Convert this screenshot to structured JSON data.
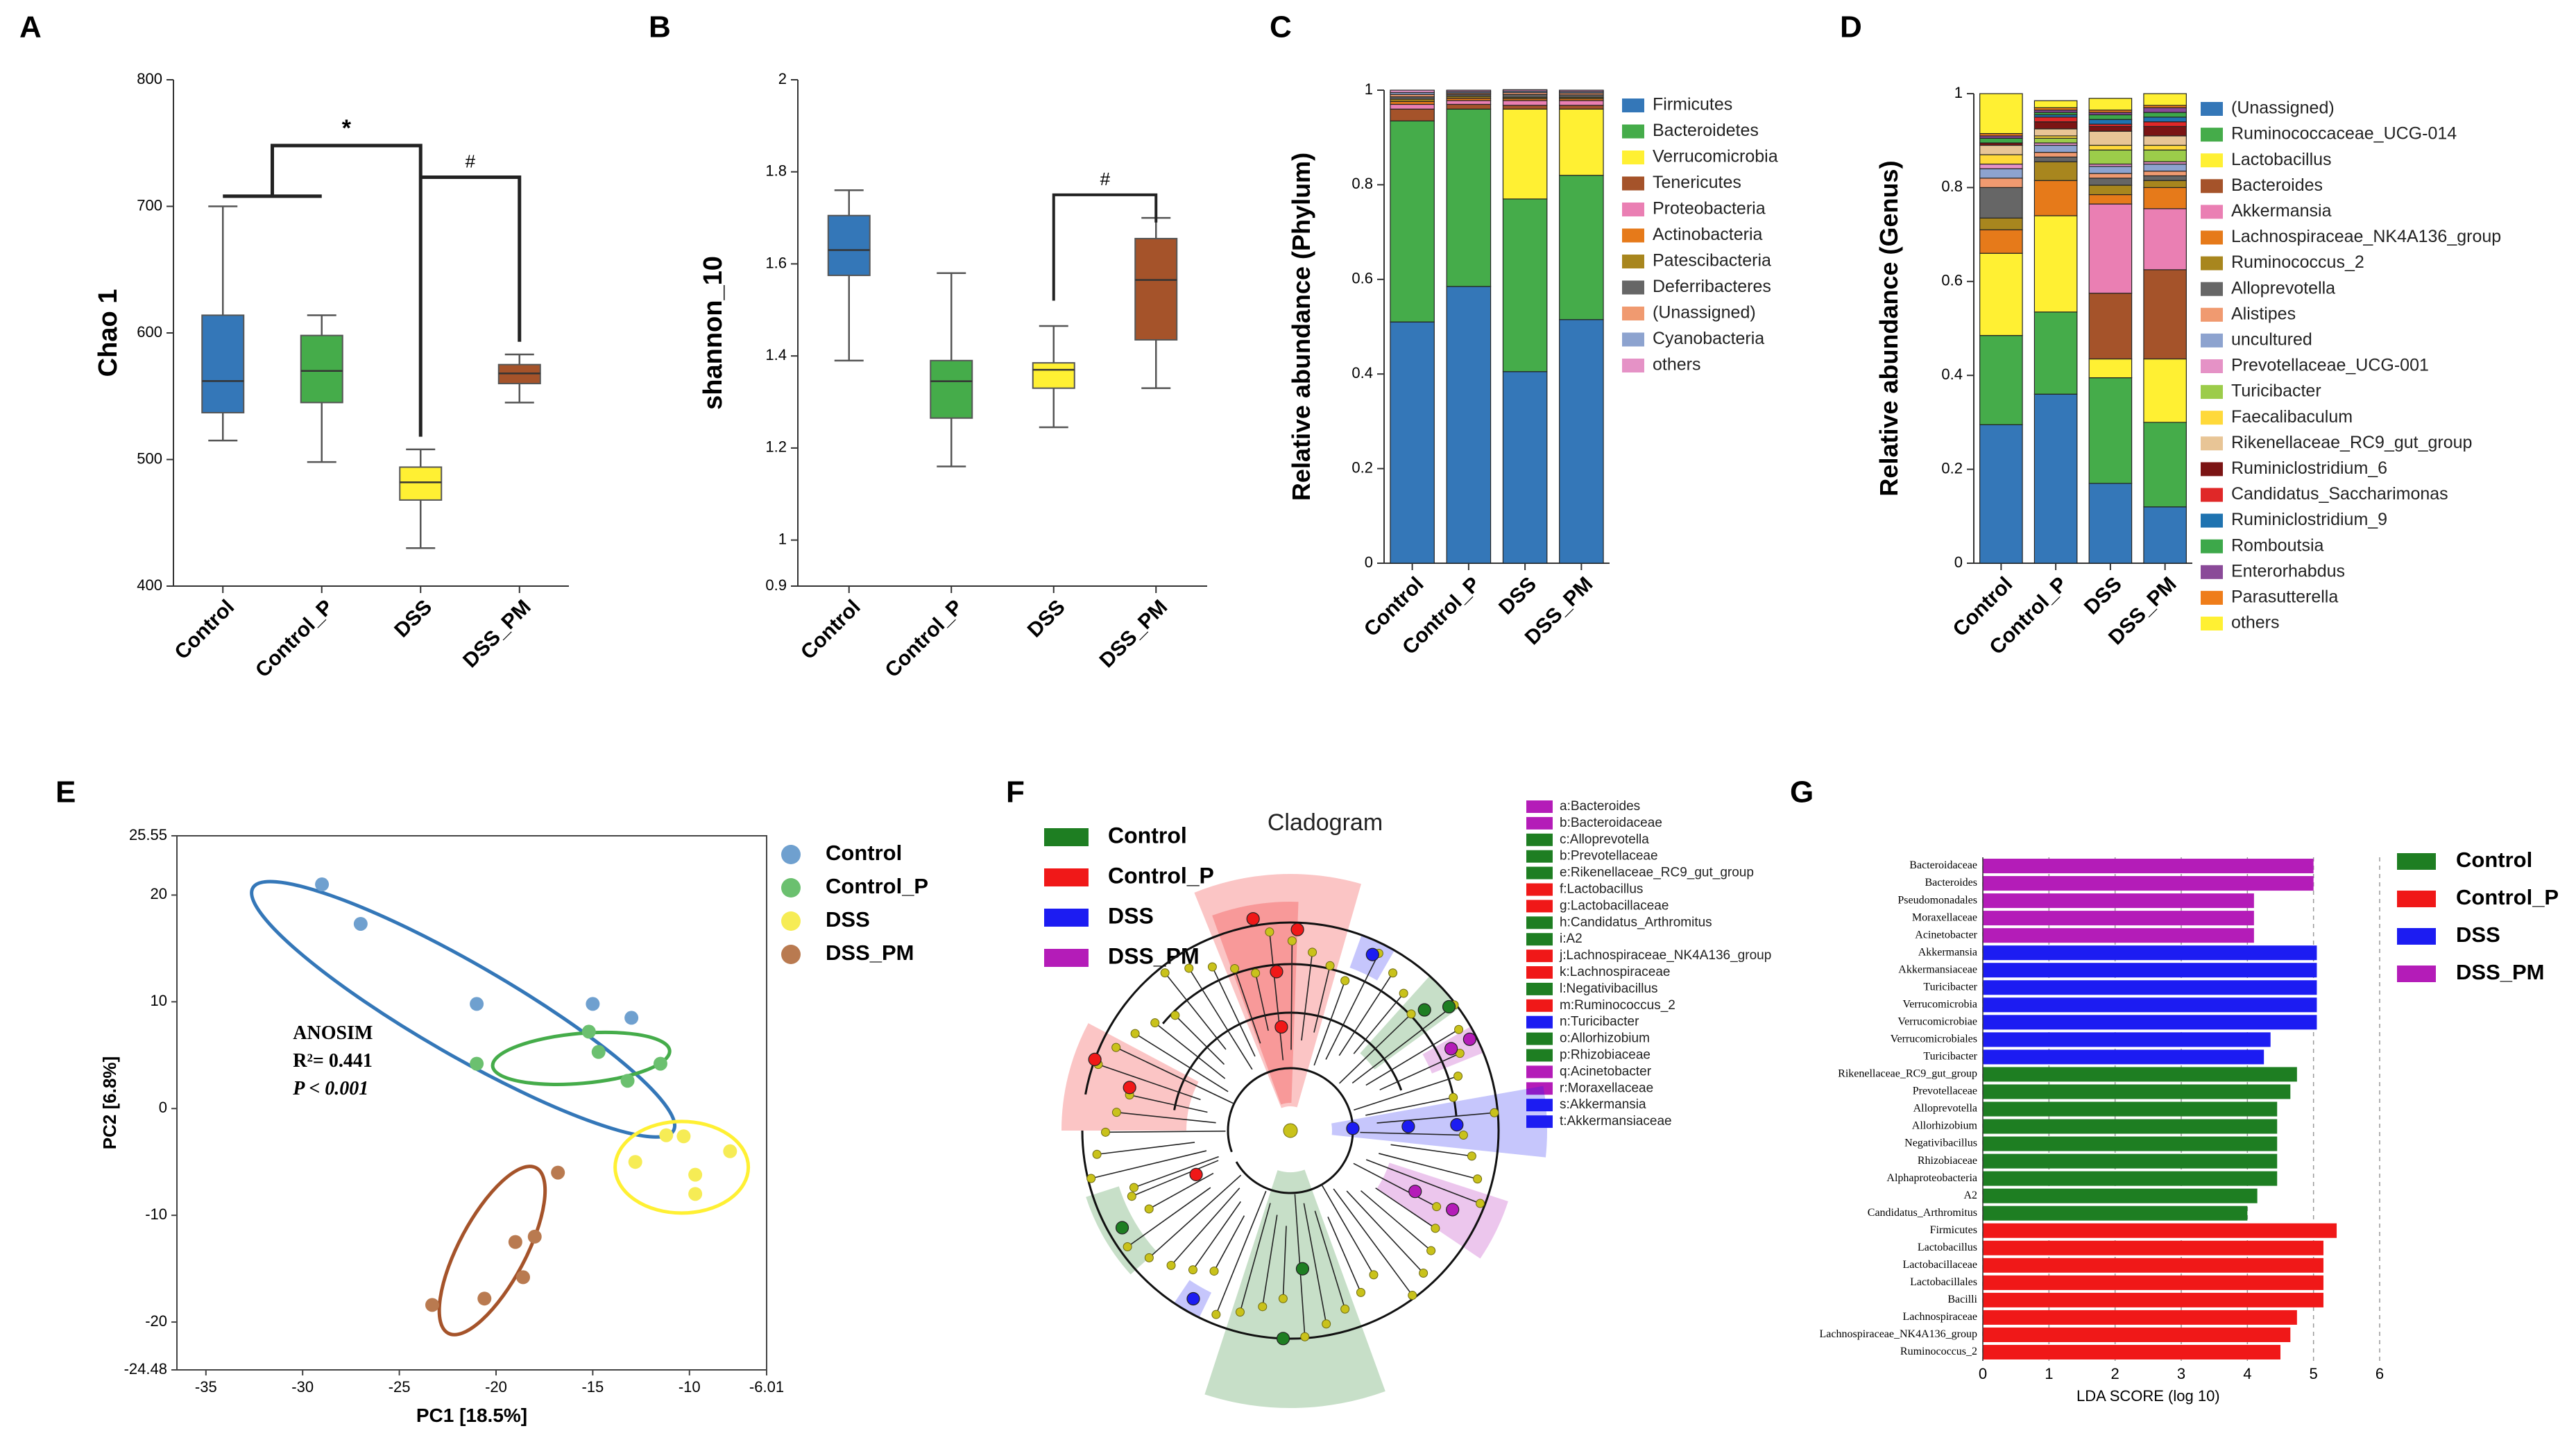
{
  "colors": {
    "control": "#3477b8",
    "control_p": "#45ac4a",
    "dss": "#fff033",
    "dss_pm": "#a5532a",
    "lefse_control": "#1e7e22",
    "lefse_control_p": "#f01818",
    "lefse_dss": "#1c1cf2",
    "lefse_dss_pm": "#b41cb8"
  },
  "panels": {
    "A": {
      "letter": "A"
    },
    "B": {
      "letter": "B"
    },
    "C": {
      "letter": "C"
    },
    "D": {
      "letter": "D"
    },
    "E": {
      "letter": "E"
    },
    "F": {
      "letter": "F"
    },
    "G": {
      "letter": "G"
    }
  },
  "chart_data": [
    {
      "id": "A",
      "type": "box",
      "ylabel": "Chao 1",
      "ylim": [
        400,
        800
      ],
      "yticks": [
        "400",
        "500",
        "600",
        "700",
        "800"
      ],
      "categories": [
        "Control",
        "Control_P",
        "DSS",
        "DSS_PM"
      ],
      "boxes": [
        {
          "min": 515,
          "q1": 537,
          "median": 562,
          "q3": 614,
          "max": 700,
          "color": "#3477b8"
        },
        {
          "min": 498,
          "q1": 545,
          "median": 570,
          "q3": 598,
          "max": 614,
          "color": "#45ac4a"
        },
        {
          "min": 430,
          "q1": 468,
          "median": 482,
          "q3": 494,
          "max": 508,
          "color": "#fff033"
        },
        {
          "min": 545,
          "q1": 560,
          "median": 568,
          "q3": 575,
          "max": 583,
          "color": "#a5532a"
        }
      ],
      "annotations": [
        "*",
        "#"
      ]
    },
    {
      "id": "B",
      "type": "box",
      "ylabel": "shannon_10",
      "ylim": [
        0.9,
        2
      ],
      "yticks": [
        "0.9",
        "1",
        "1.2",
        "1.4",
        "1.6",
        "1.8",
        "2"
      ],
      "categories": [
        "Control",
        "Control_P",
        "DSS",
        "DSS_PM"
      ],
      "boxes": [
        {
          "min": 1.39,
          "q1": 1.575,
          "median": 1.63,
          "q3": 1.705,
          "max": 1.76,
          "color": "#3477b8"
        },
        {
          "min": 1.16,
          "q1": 1.265,
          "median": 1.345,
          "q3": 1.39,
          "max": 1.58,
          "color": "#45ac4a"
        },
        {
          "min": 1.245,
          "q1": 1.33,
          "median": 1.37,
          "q3": 1.385,
          "max": 1.465,
          "color": "#fff033"
        },
        {
          "min": 1.33,
          "q1": 1.435,
          "median": 1.565,
          "q3": 1.655,
          "max": 1.7,
          "color": "#a5532a"
        }
      ],
      "annotations": [
        "#"
      ]
    },
    {
      "id": "C",
      "type": "stacked_bar",
      "ylabel": "Relative abundance (Phylum)",
      "ylim": [
        0,
        1
      ],
      "yticks": [
        "0",
        "0.2",
        "0.4",
        "0.6",
        "0.8",
        "1"
      ],
      "categories": [
        "Control",
        "Control_P",
        "DSS",
        "DSS_PM"
      ],
      "series": [
        {
          "name": "Firmicutes",
          "color": "#3477b8",
          "values": [
            0.51,
            0.585,
            0.405,
            0.515
          ]
        },
        {
          "name": "Bacteroidetes",
          "color": "#45ac4a",
          "values": [
            0.425,
            0.375,
            0.365,
            0.305
          ]
        },
        {
          "name": "Verrucomicrobia",
          "color": "#fff033",
          "values": [
            0.0,
            0.0,
            0.19,
            0.14
          ]
        },
        {
          "name": "Tenericutes",
          "color": "#a5532a",
          "values": [
            0.025,
            0.01,
            0.008,
            0.008
          ]
        },
        {
          "name": "Proteobacteria",
          "color": "#ea7fb3",
          "values": [
            0.01,
            0.008,
            0.01,
            0.01
          ]
        },
        {
          "name": "Actinobacteria",
          "color": "#e67a1a",
          "values": [
            0.006,
            0.005,
            0.004,
            0.004
          ]
        },
        {
          "name": "Patescibacteria",
          "color": "#a8861e",
          "values": [
            0.005,
            0.004,
            0.003,
            0.003
          ]
        },
        {
          "name": "Deferribacteres",
          "color": "#666666",
          "values": [
            0.005,
            0.004,
            0.006,
            0.005
          ]
        },
        {
          "name": "(Unassigned)",
          "color": "#f09a70",
          "values": [
            0.005,
            0.003,
            0.004,
            0.004
          ]
        },
        {
          "name": "Cyanobacteria",
          "color": "#8da3cf",
          "values": [
            0.004,
            0.003,
            0.003,
            0.003
          ]
        },
        {
          "name": "others",
          "color": "#e592c6",
          "values": [
            0.005,
            0.003,
            0.003,
            0.003
          ]
        }
      ]
    },
    {
      "id": "D",
      "type": "stacked_bar",
      "ylabel": "Relative abundance (Genus)",
      "ylim": [
        0,
        1
      ],
      "yticks": [
        "0",
        "0.2",
        "0.4",
        "0.6",
        "0.8",
        "1"
      ],
      "categories": [
        "Control",
        "Control_P",
        "DSS",
        "DSS_PM"
      ],
      "series": [
        {
          "name": "(Unassigned)",
          "color": "#3477b8",
          "values": [
            0.295,
            0.36,
            0.17,
            0.12
          ]
        },
        {
          "name": "Ruminococcaceae_UCG-014",
          "color": "#45ac4a",
          "values": [
            0.19,
            0.175,
            0.225,
            0.18
          ]
        },
        {
          "name": "Lactobacillus",
          "color": "#fff033",
          "values": [
            0.175,
            0.205,
            0.04,
            0.135
          ]
        },
        {
          "name": "Bacteroides",
          "color": "#a5532a",
          "values": [
            0.0,
            0.0,
            0.14,
            0.19
          ]
        },
        {
          "name": "Akkermansia",
          "color": "#ea7fb3",
          "values": [
            0.0,
            0.0,
            0.19,
            0.13
          ]
        },
        {
          "name": "Lachnospiraceae_NK4A136_group",
          "color": "#e67a1a",
          "values": [
            0.05,
            0.075,
            0.02,
            0.045
          ]
        },
        {
          "name": "Ruminococcus_2",
          "color": "#a8861e",
          "values": [
            0.025,
            0.04,
            0.02,
            0.015
          ]
        },
        {
          "name": "Alloprevotella",
          "color": "#666666",
          "values": [
            0.065,
            0.01,
            0.015,
            0.01
          ]
        },
        {
          "name": "Alistipes",
          "color": "#f09a70",
          "values": [
            0.02,
            0.01,
            0.01,
            0.01
          ]
        },
        {
          "name": "uncultured",
          "color": "#8da3cf",
          "values": [
            0.02,
            0.015,
            0.015,
            0.015
          ]
        },
        {
          "name": "Prevotellaceae_UCG-001",
          "color": "#e592c6",
          "values": [
            0.01,
            0.005,
            0.005,
            0.005
          ]
        },
        {
          "name": "Turicibacter",
          "color": "#9ccc4a",
          "values": [
            0.0,
            0.01,
            0.03,
            0.025
          ]
        },
        {
          "name": "Faecalibaculum",
          "color": "#ffd93a",
          "values": [
            0.02,
            0.005,
            0.01,
            0.01
          ]
        },
        {
          "name": "Rikenellaceae_RC9_gut_group",
          "color": "#e8c596",
          "values": [
            0.02,
            0.015,
            0.03,
            0.02
          ]
        },
        {
          "name": "Ruminiclostridium_6",
          "color": "#7b1414",
          "values": [
            0.005,
            0.015,
            0.01,
            0.02
          ]
        },
        {
          "name": "Candidatus_Saccharimonas",
          "color": "#e02828",
          "values": [
            0.0,
            0.01,
            0.005,
            0.01
          ]
        },
        {
          "name": "Ruminiclostridium_9",
          "color": "#1f73b0",
          "values": [
            0.0,
            0.005,
            0.01,
            0.01
          ]
        },
        {
          "name": "Romboutsia",
          "color": "#3da84a",
          "values": [
            0.01,
            0.005,
            0.01,
            0.01
          ]
        },
        {
          "name": "Enterorhabdus",
          "color": "#8a4a98",
          "values": [
            0.005,
            0.005,
            0.005,
            0.01
          ]
        },
        {
          "name": "Parasutterella",
          "color": "#ef7d1a",
          "values": [
            0.005,
            0.005,
            0.005,
            0.005
          ]
        },
        {
          "name": "others",
          "color": "#fff033",
          "values": [
            0.085,
            0.015,
            0.025,
            0.025
          ]
        }
      ]
    },
    {
      "id": "E",
      "type": "scatter",
      "xlabel": "PC1 [18.5%]",
      "ylabel": "PC2 [6.8%]",
      "xlim": [
        -36.5,
        -6.01
      ],
      "ylim": [
        -24.48,
        25.55
      ],
      "xticks": [
        "-35",
        "-30",
        "-25",
        "-20",
        "-15",
        "-10",
        "-6.01"
      ],
      "yticks": [
        "25.55",
        "20",
        "10",
        "0",
        "-10",
        "-20",
        "-24.48"
      ],
      "annotation": {
        "title": "ANOSIM",
        "r2": "R²= 0.441",
        "p": "P < 0.001"
      },
      "series": [
        {
          "name": "Control",
          "color": "#6fa0cf",
          "x": [
            -29,
            -27,
            -21,
            -15,
            -13
          ],
          "y": [
            21,
            17.3,
            9.8,
            9.8,
            8.5
          ]
        },
        {
          "name": "Control_P",
          "color": "#6bc06f",
          "x": [
            -21,
            -15.2,
            -14.7,
            -13.2,
            -11.5
          ],
          "y": [
            4.2,
            7.2,
            5.3,
            2.6,
            4.2
          ]
        },
        {
          "name": "DSS",
          "color": "#f6ec55",
          "x": [
            -11.2,
            -10.3,
            -9.7,
            -7.9,
            -12.8,
            -9.7
          ],
          "y": [
            -2.5,
            -2.6,
            -6.2,
            -4,
            -5,
            -8
          ]
        },
        {
          "name": "DSS_PM",
          "color": "#b97a50",
          "x": [
            -16.8,
            -18,
            -19,
            -18.6,
            -20.6,
            -23.3
          ],
          "y": [
            -6,
            -12,
            -12.5,
            -15.8,
            -17.8,
            -18.4
          ]
        }
      ]
    },
    {
      "id": "F",
      "type": "cladogram",
      "title": "Cladogram",
      "legend": [
        {
          "name": "Control",
          "color": "#1e7e22"
        },
        {
          "name": "Control_P",
          "color": "#f01818"
        },
        {
          "name": "DSS",
          "color": "#1c1cf2"
        },
        {
          "name": "DSS_PM",
          "color": "#b41cb8"
        }
      ],
      "taxa": [
        {
          "label": "a:Bacteroides",
          "color": "#b41cb8"
        },
        {
          "label": "b:Bacteroidaceae",
          "color": "#b41cb8"
        },
        {
          "label": "c:Alloprevotella",
          "color": "#1e7e22"
        },
        {
          "label": "b:Prevotellaceae",
          "color": "#1e7e22"
        },
        {
          "label": "e:Rikenellaceae_RC9_gut_group",
          "color": "#1e7e22"
        },
        {
          "label": "f:Lactobacillus",
          "color": "#f01818"
        },
        {
          "label": "g:Lactobacillaceae",
          "color": "#f01818"
        },
        {
          "label": "h:Candidatus_Arthromitus",
          "color": "#1e7e22"
        },
        {
          "label": "i:A2",
          "color": "#1e7e22"
        },
        {
          "label": "j:Lachnospiraceae_NK4A136_group",
          "color": "#f01818"
        },
        {
          "label": "k:Lachnospiraceae",
          "color": "#f01818"
        },
        {
          "label": "l:Negativibacillus",
          "color": "#1e7e22"
        },
        {
          "label": "m:Ruminococcus_2",
          "color": "#f01818"
        },
        {
          "label": "n:Turicibacter",
          "color": "#1c1cf2"
        },
        {
          "label": "o:Allorhizobium",
          "color": "#1e7e22"
        },
        {
          "label": "p:Rhizobiaceae",
          "color": "#1e7e22"
        },
        {
          "label": "q:Acinetobacter",
          "color": "#b41cb8"
        },
        {
          "label": "r:Moraxellaceae",
          "color": "#b41cb8"
        },
        {
          "label": "s:Akkermansia",
          "color": "#1c1cf2"
        },
        {
          "label": "t:Akkermansiaceae",
          "color": "#1c1cf2"
        }
      ]
    },
    {
      "id": "G",
      "type": "hbar",
      "xlabel": "LDA SCORE (log 10)",
      "xlim": [
        0,
        6
      ],
      "xticks": [
        "0",
        "1",
        "2",
        "3",
        "4",
        "5",
        "6"
      ],
      "legend": [
        {
          "name": "Control",
          "color": "#1e7e22"
        },
        {
          "name": "Control_P",
          "color": "#f01818"
        },
        {
          "name": "DSS",
          "color": "#1c1cf2"
        },
        {
          "name": "DSS_PM",
          "color": "#b41cb8"
        }
      ],
      "bars": [
        {
          "label": "Bacteroidaceae",
          "value": 5.0,
          "group": "DSS_PM",
          "color": "#b41cb8"
        },
        {
          "label": "Bacteroides",
          "value": 5.0,
          "group": "DSS_PM",
          "color": "#b41cb8"
        },
        {
          "label": "Pseudomonadales",
          "value": 4.1,
          "group": "DSS_PM",
          "color": "#b41cb8"
        },
        {
          "label": "Moraxellaceae",
          "value": 4.1,
          "group": "DSS_PM",
          "color": "#b41cb8"
        },
        {
          "label": "Acinetobacter",
          "value": 4.1,
          "group": "DSS_PM",
          "color": "#b41cb8"
        },
        {
          "label": "Akkermansia",
          "value": 5.05,
          "group": "DSS",
          "color": "#1c1cf2"
        },
        {
          "label": "Akkermansiaceae",
          "value": 5.05,
          "group": "DSS",
          "color": "#1c1cf2"
        },
        {
          "label": "Turicibacter",
          "value": 5.05,
          "group": "DSS",
          "color": "#1c1cf2"
        },
        {
          "label": "Verrucomicrobia",
          "value": 5.05,
          "group": "DSS",
          "color": "#1c1cf2"
        },
        {
          "label": "Verrucomicrobiae",
          "value": 5.05,
          "group": "DSS",
          "color": "#1c1cf2"
        },
        {
          "label": "Verrucomicrobiales",
          "value": 4.35,
          "group": "DSS",
          "color": "#1c1cf2"
        },
        {
          "label": "Turicibacter",
          "value": 4.25,
          "group": "DSS",
          "color": "#1c1cf2"
        },
        {
          "label": "Rikenellaceae_RC9_gut_group",
          "value": 4.75,
          "group": "Control",
          "color": "#1e7e22"
        },
        {
          "label": "Prevotellaceae",
          "value": 4.65,
          "group": "Control",
          "color": "#1e7e22"
        },
        {
          "label": "Alloprevotella",
          "value": 4.45,
          "group": "Control",
          "color": "#1e7e22"
        },
        {
          "label": "Allorhizobium",
          "value": 4.45,
          "group": "Control",
          "color": "#1e7e22"
        },
        {
          "label": "Negativibacillus",
          "value": 4.45,
          "group": "Control",
          "color": "#1e7e22"
        },
        {
          "label": "Rhizobiaceae",
          "value": 4.45,
          "group": "Control",
          "color": "#1e7e22"
        },
        {
          "label": "Alphaproteobacteria",
          "value": 4.45,
          "group": "Control",
          "color": "#1e7e22"
        },
        {
          "label": "A2",
          "value": 4.15,
          "group": "Control",
          "color": "#1e7e22"
        },
        {
          "label": "Candidatus_Arthromitus",
          "value": 4.0,
          "group": "Control",
          "color": "#1e7e22"
        },
        {
          "label": "Firmicutes",
          "value": 5.35,
          "group": "Control_P",
          "color": "#f01818"
        },
        {
          "label": "Lactobacillus",
          "value": 5.15,
          "group": "Control_P",
          "color": "#f01818"
        },
        {
          "label": "Lactobacillaceae",
          "value": 5.15,
          "group": "Control_P",
          "color": "#f01818"
        },
        {
          "label": "Lactobacillales",
          "value": 5.15,
          "group": "Control_P",
          "color": "#f01818"
        },
        {
          "label": "Bacilli",
          "value": 5.15,
          "group": "Control_P",
          "color": "#f01818"
        },
        {
          "label": "Lachnospiraceae",
          "value": 4.75,
          "group": "Control_P",
          "color": "#f01818"
        },
        {
          "label": "Lachnospiraceae_NK4A136_group",
          "value": 4.65,
          "group": "Control_P",
          "color": "#f01818"
        },
        {
          "label": "Ruminococcus_2",
          "value": 4.5,
          "group": "Control_P",
          "color": "#f01818"
        }
      ]
    }
  ]
}
